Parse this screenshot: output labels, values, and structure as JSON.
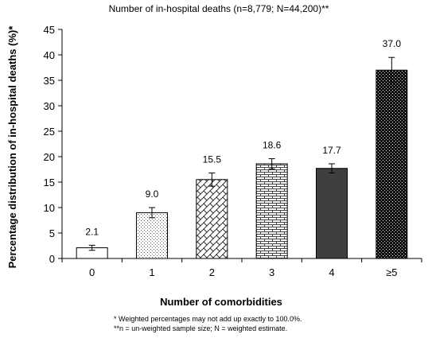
{
  "chart_data": {
    "type": "bar",
    "title": "Number of in-hospital deaths (n=8,779; N=44,200)**",
    "xlabel": "Number of comorbidities",
    "ylabel": "Percentage  distribution of in-hospital deaths (%)*",
    "categories": [
      "0",
      "1",
      "2",
      "3",
      "4",
      "≥5"
    ],
    "values": [
      2.1,
      9.0,
      15.5,
      18.6,
      17.7,
      37.0
    ],
    "value_labels": [
      "2.1",
      "9.0",
      "15.5",
      "18.6",
      "17.7",
      "37.0"
    ],
    "error_bars": [
      0.5,
      1.0,
      1.3,
      1.0,
      0.9,
      2.5
    ],
    "ylim": [
      0,
      45
    ],
    "yticks": [
      "0",
      "5",
      "10",
      "15",
      "20",
      "25",
      "30",
      "35",
      "40",
      "45"
    ],
    "ytick_values": [
      0,
      5,
      10,
      15,
      20,
      25,
      30,
      35,
      40,
      45
    ],
    "grid": false,
    "legend": "none",
    "bar_fills": [
      "blank",
      "dots",
      "diagonal-brick",
      "horizontal-brick",
      "dark-solid",
      "black-dotted"
    ],
    "footnotes": [
      "*  Weighted percentages may not add up exactly to 100.0%.",
      "**n = un-weighted sample size; N = weighted estimate."
    ]
  }
}
